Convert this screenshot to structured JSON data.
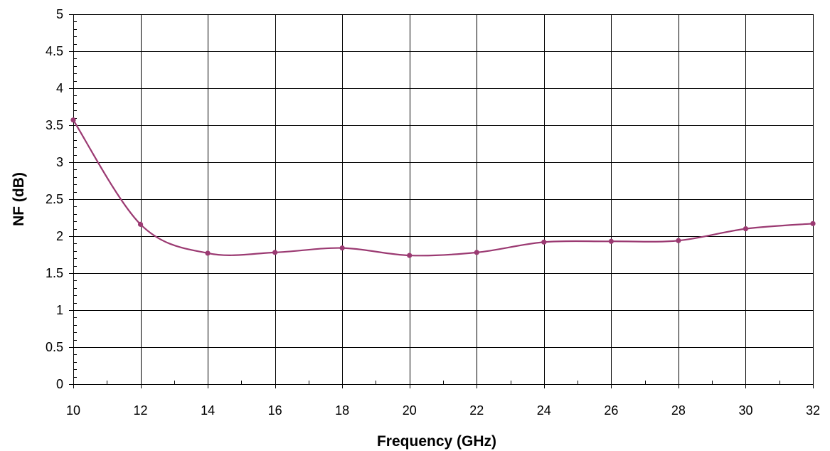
{
  "chart_data": {
    "type": "line",
    "title": "",
    "xlabel": "Frequency (GHz)",
    "ylabel": "NF (dB)",
    "xlim": [
      10,
      32
    ],
    "ylim": [
      0,
      5
    ],
    "x_ticks": [
      10,
      12,
      14,
      16,
      18,
      20,
      22,
      24,
      26,
      28,
      30,
      32
    ],
    "y_ticks": [
      0,
      0.5,
      1,
      1.5,
      2,
      2.5,
      3,
      3.5,
      4,
      4.5,
      5
    ],
    "grid": true,
    "legend": "none",
    "series": [
      {
        "color": "#9b3a72",
        "smooth": true,
        "marker": "circle",
        "x": [
          10,
          12,
          14,
          16,
          18,
          20,
          22,
          24,
          26,
          28,
          30,
          32
        ],
        "y": [
          3.57,
          2.16,
          1.77,
          1.78,
          1.84,
          1.74,
          1.78,
          1.92,
          1.93,
          1.94,
          2.1,
          2.17
        ]
      }
    ]
  }
}
